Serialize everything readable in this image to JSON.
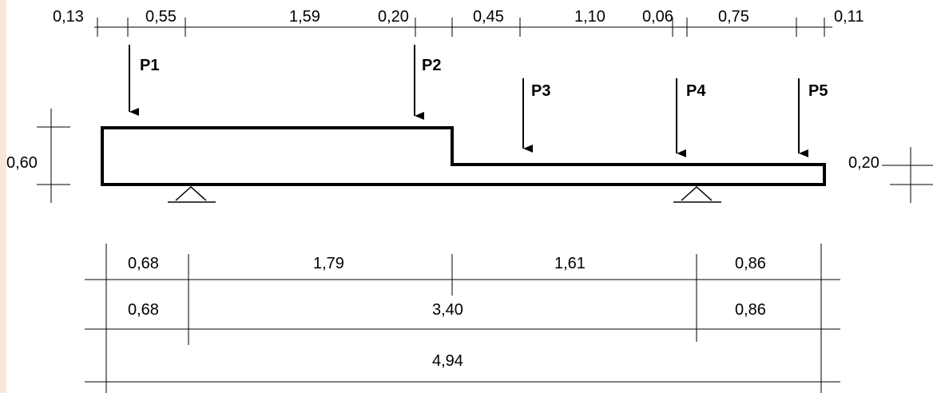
{
  "top_dimensions": [
    "0,13",
    "0,55",
    "1,59",
    "0,20",
    "0,45",
    "1,10",
    "0,06",
    "0,75",
    "0,11"
  ],
  "loads": [
    "P1",
    "P2",
    "P3",
    "P4",
    "P5"
  ],
  "side_dimensions": {
    "left": "0,60",
    "right": "0,20"
  },
  "bottom_dimensions": {
    "row1": [
      "0,68",
      "1,79",
      "1,61",
      "0,86"
    ],
    "row2": [
      "0,68",
      "3,40",
      "0,86"
    ],
    "row3": [
      "4,94"
    ]
  }
}
